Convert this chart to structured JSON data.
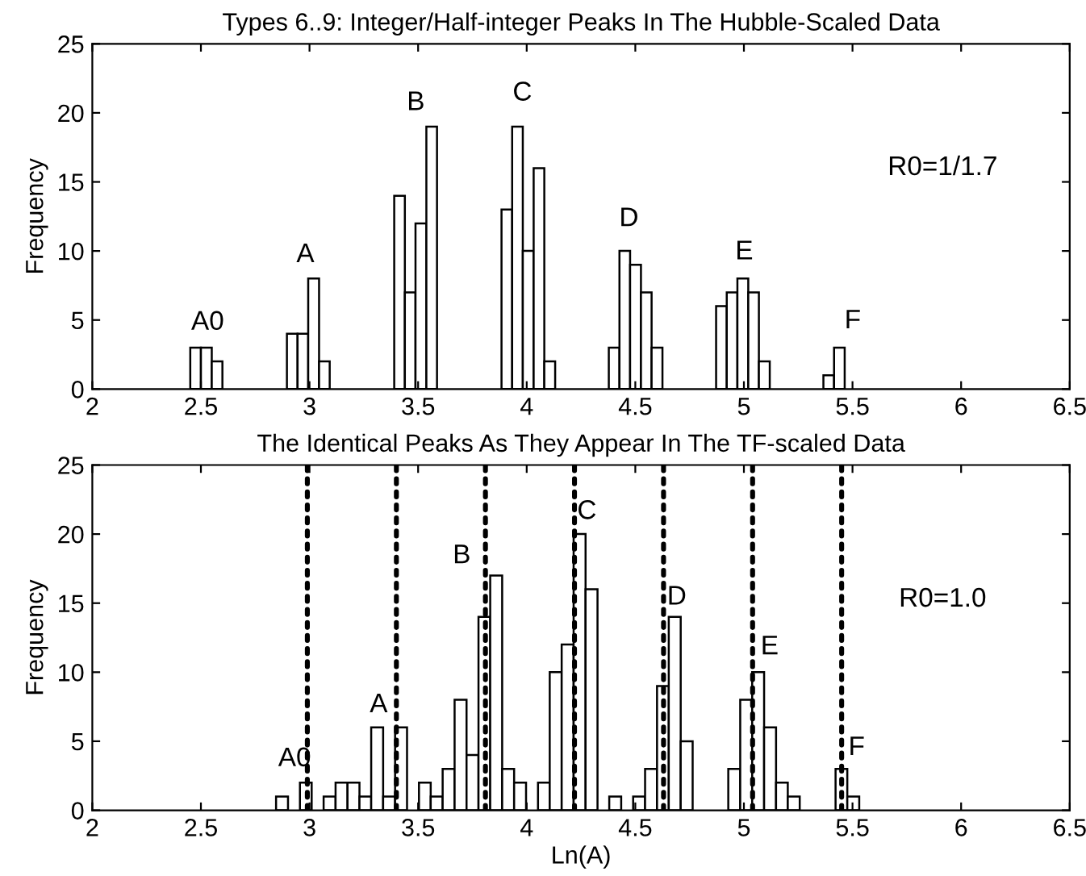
{
  "chart_data": [
    {
      "type": "histogram",
      "title": "Types 6..9: Integer/Half-integer Peaks In The Hubble-Scaled Data",
      "ylabel": "Frequency",
      "bins": [
        2.451,
        2.5,
        2.55,
        2.599,
        2.649,
        2.698,
        2.747,
        2.797,
        2.846,
        2.896,
        2.945,
        2.994,
        3.044,
        3.093,
        3.143,
        3.192,
        3.241,
        3.291,
        3.34,
        3.39,
        3.439,
        3.488,
        3.538,
        3.587,
        3.637,
        3.686,
        3.735,
        3.785,
        3.834,
        3.884,
        3.933,
        3.982,
        4.032,
        4.081,
        4.131,
        4.18,
        4.229,
        4.279,
        4.328,
        4.378,
        4.427,
        4.476,
        4.526,
        4.575,
        4.625,
        4.674,
        4.723,
        4.773,
        4.822,
        4.872,
        4.921,
        4.97,
        5.02,
        5.069,
        5.119,
        5.168,
        5.217,
        5.267,
        5.316,
        5.366,
        5.415,
        5.464
      ],
      "values": [
        3,
        3,
        2,
        0,
        0,
        0,
        0,
        0,
        0,
        4,
        4,
        8,
        2,
        0,
        0,
        0,
        0,
        0,
        0,
        14,
        7,
        12,
        19,
        0,
        0,
        0,
        0,
        0,
        0,
        13,
        19,
        10,
        16,
        2,
        0,
        0,
        0,
        0,
        0,
        3,
        10,
        9,
        7,
        3,
        0,
        0,
        0,
        0,
        0,
        6,
        7,
        8,
        7,
        2,
        0,
        0,
        0,
        0,
        0,
        1,
        3
      ],
      "color": "#ffffff",
      "xlim": [
        2,
        6.5
      ],
      "ylim": [
        0,
        25
      ],
      "xticks": [
        2,
        2.5,
        3,
        3.5,
        4,
        4.5,
        5,
        5.5,
        6,
        6.5
      ],
      "yticks": [
        0,
        5,
        10,
        15,
        20,
        25
      ],
      "grid": false,
      "annotations": [
        "A0",
        "A",
        "B",
        "C",
        "D",
        "E",
        "F",
        "R0=1/1.7"
      ]
    },
    {
      "type": "histogram",
      "title": "The Identical Peaks As They Appear In The TF-scaled Data",
      "xlabel": "Ln(A)",
      "ylabel": "Frequency",
      "bins": [
        2.846,
        2.901,
        2.956,
        3.01,
        3.065,
        3.12,
        3.175,
        3.23,
        3.284,
        3.339,
        3.394,
        3.449,
        3.504,
        3.558,
        3.613,
        3.668,
        3.723,
        3.778,
        3.832,
        3.887,
        3.942,
        3.997,
        4.052,
        4.106,
        4.161,
        4.216,
        4.271,
        4.326,
        4.38,
        4.435,
        4.49,
        4.545,
        4.6,
        4.654,
        4.709,
        4.764,
        4.819,
        4.874,
        4.928,
        4.983,
        5.038,
        5.093,
        5.148,
        5.202,
        5.257,
        5.312,
        5.367,
        5.422,
        5.476,
        5.531
      ],
      "values": [
        1,
        0,
        2,
        0,
        1,
        2,
        2,
        1,
        6,
        1,
        6,
        0,
        2,
        1,
        3,
        8,
        4,
        14,
        17,
        3,
        2,
        0,
        2,
        10,
        12,
        20,
        16,
        0,
        1,
        0,
        1,
        3,
        9,
        14,
        5,
        0,
        0,
        0,
        3,
        8,
        10,
        6,
        2,
        1,
        0,
        0,
        0,
        3,
        1
      ],
      "color": "#ffffff",
      "xlim": [
        2,
        6.5
      ],
      "ylim": [
        0,
        25
      ],
      "xticks": [
        2,
        2.5,
        3,
        3.5,
        4,
        4.5,
        5,
        5.5,
        6,
        6.5
      ],
      "yticks": [
        0,
        5,
        10,
        15,
        20,
        25
      ],
      "grid": false,
      "ref_lines": [
        {
          "axis": "x",
          "value": 2.99,
          "color": "#000000",
          "line_style": "dotted"
        },
        {
          "axis": "x",
          "value": 3.4,
          "color": "#000000",
          "line_style": "dotted"
        },
        {
          "axis": "x",
          "value": 3.81,
          "color": "#000000",
          "line_style": "dotted"
        },
        {
          "axis": "x",
          "value": 4.22,
          "color": "#000000",
          "line_style": "dotted"
        },
        {
          "axis": "x",
          "value": 4.63,
          "color": "#000000",
          "line_style": "dotted"
        },
        {
          "axis": "x",
          "value": 5.04,
          "color": "#000000",
          "line_style": "dotted"
        },
        {
          "axis": "x",
          "value": 5.45,
          "color": "#000000",
          "line_style": "dotted"
        }
      ],
      "annotations": [
        "A0",
        "A",
        "B",
        "C",
        "D",
        "E",
        "F",
        "R0=1.0"
      ]
    }
  ]
}
